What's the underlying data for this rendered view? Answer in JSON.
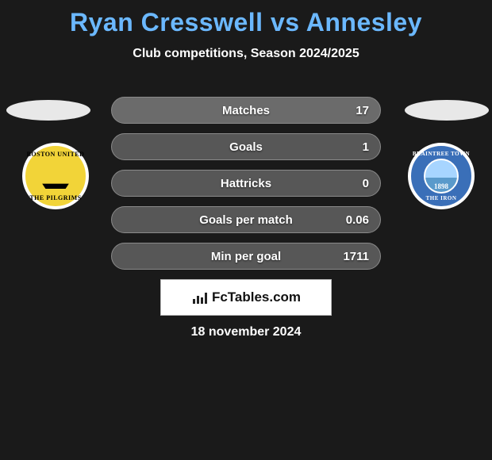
{
  "title": "Ryan Cresswell vs Annesley",
  "title_color": "#6bb8ff",
  "subtitle": "Club competitions, Season 2024/2025",
  "background_color": "#1a1a1a",
  "crest_left": {
    "top_text": "BOSTON UNITED",
    "bottom_text": "THE PILGRIMS",
    "bg_color": "#f2d438",
    "border_color": "#ffffff"
  },
  "crest_right": {
    "top_text": "BRAINTREE TOWN",
    "bottom_text": "THE IRON",
    "year": "1898",
    "bg_color": "#3a6fb8",
    "border_color": "#ffffff"
  },
  "stats": {
    "row_bg": "#575757",
    "row_bg_first": "#6b6b6b",
    "row_border": "#8a8a8a",
    "text_color": "#ffffff",
    "rows": [
      {
        "label": "Matches",
        "value": "17"
      },
      {
        "label": "Goals",
        "value": "1"
      },
      {
        "label": "Hattricks",
        "value": "0"
      },
      {
        "label": "Goals per match",
        "value": "0.06"
      },
      {
        "label": "Min per goal",
        "value": "1711"
      }
    ]
  },
  "brand": {
    "text": "FcTables.com",
    "box_bg": "#ffffff"
  },
  "footer_date": "18 november 2024",
  "ellipse_color": "#e8e8e8"
}
